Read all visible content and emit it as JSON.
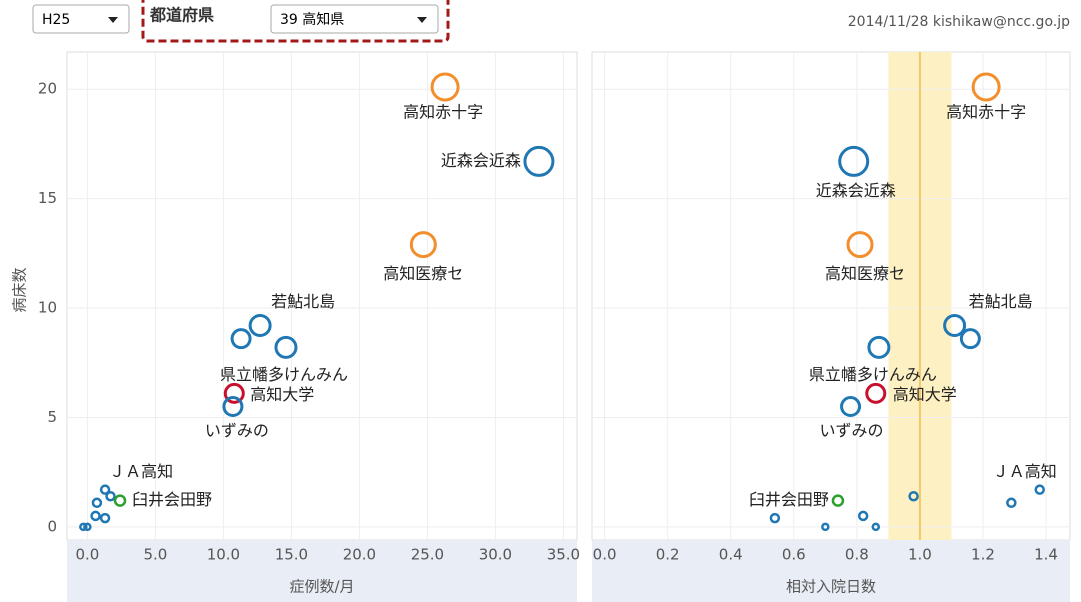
{
  "controls": {
    "year": "H25",
    "prefecture_label": "都道府県",
    "prefecture": "39 高知県",
    "stamp": "2014/11/28 kishikaw@ncc.go.jp"
  },
  "chart_data": [
    {
      "type": "scatter",
      "y_label": "病床数",
      "x_label": "症例数/月",
      "labels": [
        "高知赤十字",
        "近森会近森",
        "高知医療セ",
        "若鮎北島",
        null,
        "県立幡多けんみん",
        "高知大学",
        "いずみの",
        "ＪＡ高知",
        null,
        "臼井会田野",
        null,
        null,
        null,
        null,
        null
      ],
      "x": [
        26.3,
        33.2,
        24.7,
        12.7,
        11.3,
        14.6,
        10.8,
        10.7,
        1.3,
        1.7,
        2.4,
        0.7,
        0.6,
        1.3,
        -0.3,
        0
      ],
      "y": [
        20.1,
        16.7,
        12.9,
        9.2,
        8.6,
        8.2,
        6.1,
        5.5,
        1.7,
        1.4,
        1.2,
        1.1,
        0.5,
        0.4,
        0,
        0
      ],
      "sizes": [
        13,
        14,
        12,
        10,
        9,
        10,
        9,
        9,
        4,
        4,
        5,
        4,
        4,
        4,
        3,
        3
      ],
      "colors": [
        "#f28e2b",
        "#1f77b4",
        "#f28e2b",
        "#1f77b4",
        "#1f77b4",
        "#1f77b4",
        "#c8102e",
        "#1f77b4",
        "#1f77b4",
        "#1f77b4",
        "#2ca02c",
        "#1f77b4",
        "#1f77b4",
        "#1f77b4",
        "#1f77b4",
        "#1f77b4"
      ],
      "xlim": [
        -1.5,
        36
      ],
      "ylim": [
        -0.6,
        21.7
      ],
      "xticks": [
        {
          "value": 0,
          "label": "0.0"
        },
        {
          "value": 5,
          "label": "5.0"
        },
        {
          "value": 10,
          "label": "10.0"
        },
        {
          "value": 15,
          "label": "15.0"
        },
        {
          "value": 20,
          "label": "20.0"
        },
        {
          "value": 25,
          "label": "25.0"
        },
        {
          "value": 30,
          "label": "30.0"
        },
        {
          "value": 35,
          "label": "35.0"
        }
      ],
      "yticks": [
        0,
        5,
        10,
        15,
        20
      ],
      "grid": true
    },
    {
      "type": "scatter",
      "x_label": "相対入院日数",
      "labels": [
        "高知赤十字",
        "近森会近森",
        "高知医療セ",
        "若鮎北島",
        null,
        "県立幡多けんみん",
        "高知大学",
        "いずみの",
        "ＪＡ高知",
        null,
        "臼井会田野",
        null,
        null,
        null,
        null,
        null
      ],
      "x": [
        1.21,
        0.79,
        0.81,
        1.11,
        1.16,
        0.87,
        0.86,
        0.78,
        1.38,
        0.98,
        0.74,
        1.29,
        0.82,
        0.54,
        0.7,
        0.86
      ],
      "y": [
        20.1,
        16.7,
        12.9,
        9.2,
        8.6,
        8.2,
        6.1,
        5.5,
        1.7,
        1.4,
        1.2,
        1.1,
        0.5,
        0.4,
        0,
        0
      ],
      "sizes": [
        13,
        14,
        12,
        10,
        9,
        10,
        9,
        9,
        4,
        4,
        5,
        4,
        4,
        4,
        3,
        3
      ],
      "colors": [
        "#f28e2b",
        "#1f77b4",
        "#f28e2b",
        "#1f77b4",
        "#1f77b4",
        "#1f77b4",
        "#c8102e",
        "#1f77b4",
        "#1f77b4",
        "#1f77b4",
        "#2ca02c",
        "#1f77b4",
        "#1f77b4",
        "#1f77b4",
        "#1f77b4",
        "#1f77b4"
      ],
      "band": [
        0.9,
        1.1
      ],
      "reference_line": 1.0,
      "xlim": [
        -0.04,
        1.476
      ],
      "ylim": [
        -0.6,
        21.7
      ],
      "xticks": [
        {
          "value": 0,
          "label": "0.0"
        },
        0.2,
        0.4,
        0.6,
        0.8,
        {
          "value": 1,
          "label": "1.0"
        },
        1.2,
        1.4
      ],
      "yticks": [
        0,
        5,
        10,
        15,
        20
      ],
      "grid": true
    }
  ]
}
